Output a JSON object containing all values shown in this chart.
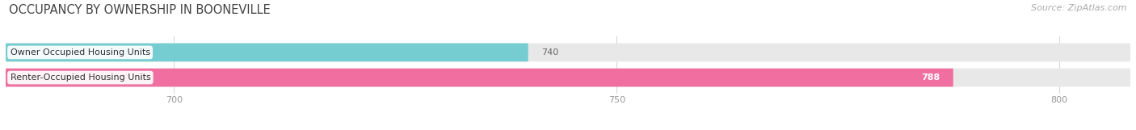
{
  "title": "OCCUPANCY BY OWNERSHIP IN BOONEVILLE",
  "source": "Source: ZipAtlas.com",
  "categories": [
    "Owner Occupied Housing Units",
    "Renter-Occupied Housing Units"
  ],
  "values": [
    740,
    788
  ],
  "bar_colors": [
    "#76cdd1",
    "#f06fa0"
  ],
  "bar_bg_color": "#e8e8e8",
  "xlim_min": 681,
  "xlim_max": 808,
  "xticks": [
    700,
    750,
    800
  ],
  "title_fontsize": 10.5,
  "source_fontsize": 8,
  "label_fontsize": 8,
  "value_fontsize": 8,
  "bar_height": 0.32,
  "bar_gap": 0.18,
  "background_color": "#ffffff",
  "label_bg": "#ffffff",
  "value_color_inside": "#ffffff",
  "value_color_outside": "#888888"
}
